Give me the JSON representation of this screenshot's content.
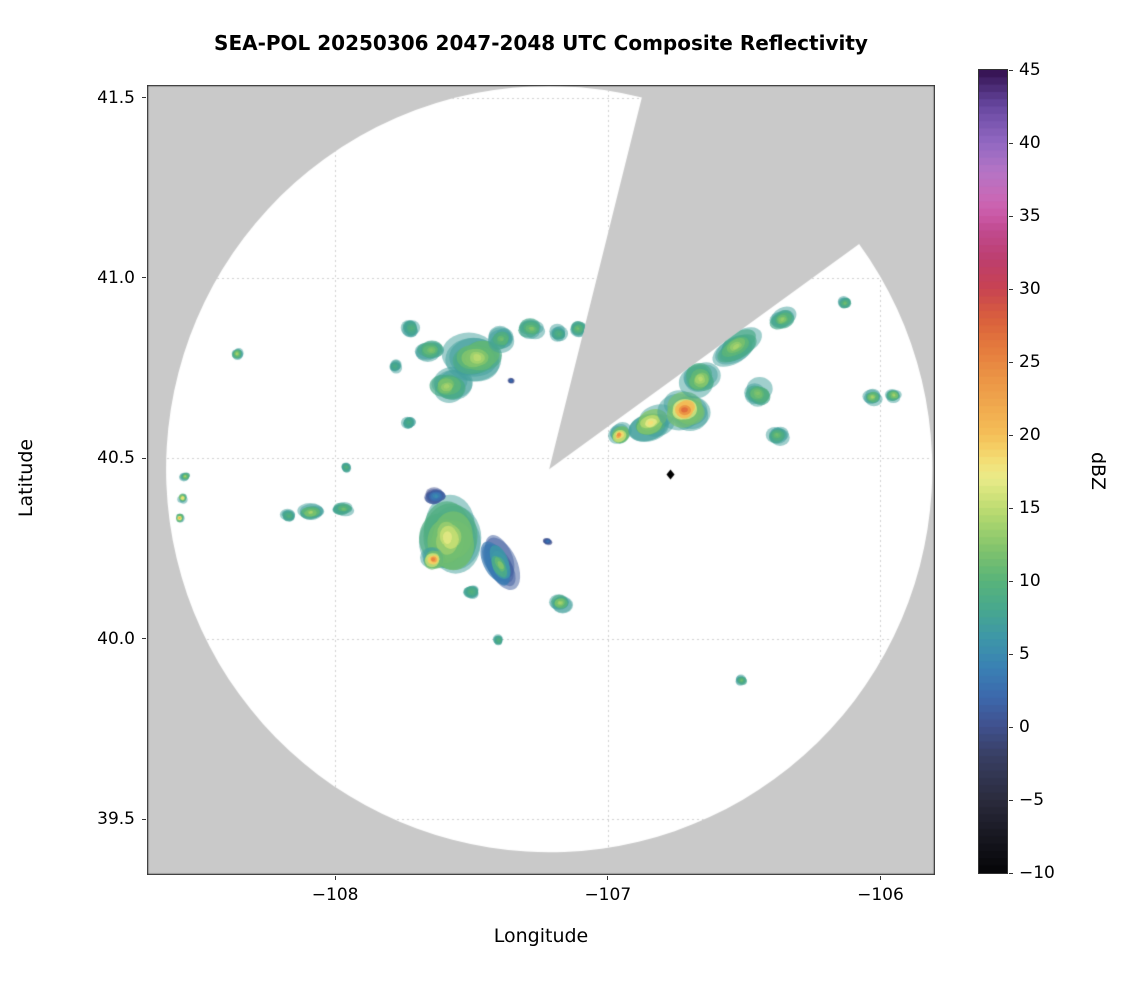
{
  "chart_data": {
    "type": "heatmap",
    "title": "SEA-POL 20250306 2047-2048 UTC Composite Reflectivity",
    "xlabel": "Longitude",
    "ylabel": "Latitude",
    "xlim": [
      -108.69,
      -105.8
    ],
    "ylim": [
      39.345,
      41.535
    ],
    "xticks": [
      {
        "v": -108,
        "label": "−108"
      },
      {
        "v": -107,
        "label": "−107"
      },
      {
        "v": -106,
        "label": "−106"
      }
    ],
    "yticks": [
      {
        "v": 39.5,
        "label": "39.5"
      },
      {
        "v": 40.0,
        "label": "40.0"
      },
      {
        "v": 40.5,
        "label": "40.5"
      },
      {
        "v": 41.0,
        "label": "41.0"
      },
      {
        "v": 41.5,
        "label": "41.5"
      }
    ],
    "grid_color": "#d2d2d2",
    "frame_color": "#333333",
    "background": "#ffffff",
    "colorbar": {
      "label": "dBZ",
      "min": -10,
      "max": 45,
      "ticks": [
        {
          "v": 45,
          "label": "45"
        },
        {
          "v": 40,
          "label": "40"
        },
        {
          "v": 35,
          "label": "35"
        },
        {
          "v": 30,
          "label": "30"
        },
        {
          "v": 25,
          "label": "25"
        },
        {
          "v": 20,
          "label": "20"
        },
        {
          "v": 15,
          "label": "15"
        },
        {
          "v": 10,
          "label": "10"
        },
        {
          "v": 5,
          "label": "5"
        },
        {
          "v": 0,
          "label": "0"
        },
        {
          "v": -5,
          "label": "−5"
        },
        {
          "v": -10,
          "label": "−10"
        }
      ],
      "stops": [
        {
          "v": -10,
          "c": "#050507"
        },
        {
          "v": -7,
          "c": "#1b1b26"
        },
        {
          "v": -5,
          "c": "#2b2b3d"
        },
        {
          "v": -2,
          "c": "#383f63"
        },
        {
          "v": 0,
          "c": "#40508d"
        },
        {
          "v": 2,
          "c": "#3c68ac"
        },
        {
          "v": 4,
          "c": "#3a80b4"
        },
        {
          "v": 6,
          "c": "#3d96a9"
        },
        {
          "v": 8,
          "c": "#47a78f"
        },
        {
          "v": 10,
          "c": "#58b37a"
        },
        {
          "v": 12,
          "c": "#7ec26d"
        },
        {
          "v": 14,
          "c": "#a8d46e"
        },
        {
          "v": 15,
          "c": "#bedc72"
        },
        {
          "v": 16,
          "c": "#d4e47c"
        },
        {
          "v": 17,
          "c": "#e9eb89"
        },
        {
          "v": 18,
          "c": "#f2e27a"
        },
        {
          "v": 19,
          "c": "#f5d167"
        },
        {
          "v": 20,
          "c": "#f4bf58"
        },
        {
          "v": 22,
          "c": "#f0a94e"
        },
        {
          "v": 24,
          "c": "#eb9345"
        },
        {
          "v": 26,
          "c": "#e47a3d"
        },
        {
          "v": 28,
          "c": "#d95f3d"
        },
        {
          "v": 30,
          "c": "#c84351"
        },
        {
          "v": 32,
          "c": "#bd3e6e"
        },
        {
          "v": 34,
          "c": "#c04b8f"
        },
        {
          "v": 35,
          "c": "#ca58a5"
        },
        {
          "v": 36,
          "c": "#cb66b4"
        },
        {
          "v": 38,
          "c": "#b575c5"
        },
        {
          "v": 40,
          "c": "#9268c2"
        },
        {
          "v": 42,
          "c": "#714fa8"
        },
        {
          "v": 43,
          "c": "#5d3d92"
        },
        {
          "v": 44,
          "c": "#47276f"
        },
        {
          "v": 45,
          "c": "#330f4d"
        }
      ]
    },
    "radar": {
      "center": [
        -107.215,
        40.47
      ],
      "radius_deg_lat": 1.062,
      "wedge_az": [
        14,
        54
      ],
      "outside_color": "#c9c9c9",
      "inside_color": "#ffffff"
    },
    "marker": {
      "lon": -106.77,
      "lat": 40.455,
      "shape": "diamond",
      "color": "#000000"
    },
    "echoes": [
      {
        "lon": -107.72,
        "lat": 40.86,
        "rx": 0.03,
        "ry": 0.022,
        "dbz": 10
      },
      {
        "lon": -107.65,
        "lat": 40.8,
        "rx": 0.05,
        "ry": 0.028,
        "dbz": 13
      },
      {
        "lon": -107.59,
        "lat": 40.7,
        "rx": 0.066,
        "ry": 0.04,
        "dbz": 15
      },
      {
        "lon": -107.48,
        "lat": 40.78,
        "rx": 0.095,
        "ry": 0.056,
        "dbz": 16
      },
      {
        "lon": -107.39,
        "lat": 40.83,
        "rx": 0.044,
        "ry": 0.03,
        "dbz": 12
      },
      {
        "lon": -107.28,
        "lat": 40.86,
        "rx": 0.044,
        "ry": 0.025,
        "dbz": 13
      },
      {
        "lon": -107.18,
        "lat": 40.845,
        "rx": 0.028,
        "ry": 0.02,
        "dbz": 10
      },
      {
        "lon": -107.11,
        "lat": 40.86,
        "rx": 0.03,
        "ry": 0.02,
        "dbz": 12
      },
      {
        "lon": -108.36,
        "lat": 40.79,
        "rx": 0.018,
        "ry": 0.014,
        "dbz": 15
      },
      {
        "lon": -107.78,
        "lat": 40.755,
        "rx": 0.022,
        "ry": 0.016,
        "dbz": 9
      },
      {
        "lon": -107.73,
        "lat": 40.6,
        "rx": 0.022,
        "ry": 0.016,
        "dbz": 9
      },
      {
        "lon": -107.96,
        "lat": 40.475,
        "rx": 0.018,
        "ry": 0.013,
        "dbz": 10
      },
      {
        "lon": -107.355,
        "lat": 40.715,
        "rx": 0.01,
        "ry": 0.007,
        "dbz": 3,
        "edge": 0
      },
      {
        "lon": -106.96,
        "lat": 40.565,
        "rx": 0.038,
        "ry": 0.024,
        "dbz": 27,
        "rot": -35
      },
      {
        "lon": -106.84,
        "lat": 40.6,
        "rx": 0.08,
        "ry": 0.04,
        "dbz": 20,
        "rot": -15
      },
      {
        "lon": -106.72,
        "lat": 40.635,
        "rx": 0.075,
        "ry": 0.048,
        "dbz": 30
      },
      {
        "lon": -106.66,
        "lat": 40.72,
        "rx": 0.058,
        "ry": 0.04,
        "dbz": 16
      },
      {
        "lon": -106.53,
        "lat": 40.81,
        "rx": 0.08,
        "ry": 0.034,
        "dbz": 15,
        "rot": -28
      },
      {
        "lon": -106.36,
        "lat": 40.885,
        "rx": 0.044,
        "ry": 0.024,
        "dbz": 14,
        "rot": -25
      },
      {
        "lon": -106.45,
        "lat": 40.68,
        "rx": 0.05,
        "ry": 0.034,
        "dbz": 13
      },
      {
        "lon": -106.38,
        "lat": 40.565,
        "rx": 0.036,
        "ry": 0.024,
        "dbz": 12
      },
      {
        "lon": -106.13,
        "lat": 40.93,
        "rx": 0.022,
        "ry": 0.015,
        "dbz": 12
      },
      {
        "lon": -106.03,
        "lat": 40.67,
        "rx": 0.03,
        "ry": 0.018,
        "dbz": 15
      },
      {
        "lon": -105.95,
        "lat": 40.675,
        "rx": 0.026,
        "ry": 0.016,
        "dbz": 15
      },
      {
        "lon": -107.585,
        "lat": 40.28,
        "rx": 0.115,
        "ry": 0.105,
        "dbz": 18
      },
      {
        "lon": -107.64,
        "lat": 40.22,
        "rx": 0.04,
        "ry": 0.03,
        "dbz": 28
      },
      {
        "lon": -107.395,
        "lat": 40.205,
        "rx": 0.05,
        "ry": 0.072,
        "dbz": 14,
        "edge": 1,
        "rot": -25
      },
      {
        "lon": -107.63,
        "lat": 40.395,
        "rx": 0.036,
        "ry": 0.02,
        "dbz": 6,
        "edge": 0
      },
      {
        "lon": -107.5,
        "lat": 40.13,
        "rx": 0.028,
        "ry": 0.018,
        "dbz": 10
      },
      {
        "lon": -107.22,
        "lat": 40.27,
        "rx": 0.014,
        "ry": 0.008,
        "dbz": 4,
        "edge": 0
      },
      {
        "lon": -108.09,
        "lat": 40.35,
        "rx": 0.044,
        "ry": 0.02,
        "dbz": 15
      },
      {
        "lon": -107.97,
        "lat": 40.36,
        "rx": 0.036,
        "ry": 0.017,
        "dbz": 12
      },
      {
        "lon": -108.17,
        "lat": 40.34,
        "rx": 0.026,
        "ry": 0.015,
        "dbz": 10
      },
      {
        "lon": -108.56,
        "lat": 40.39,
        "rx": 0.016,
        "ry": 0.012,
        "dbz": 20
      },
      {
        "lon": -108.57,
        "lat": 40.335,
        "rx": 0.014,
        "ry": 0.011,
        "dbz": 24
      },
      {
        "lon": -108.55,
        "lat": 40.45,
        "rx": 0.016,
        "ry": 0.01,
        "dbz": 15
      },
      {
        "lon": -107.175,
        "lat": 40.1,
        "rx": 0.036,
        "ry": 0.022,
        "dbz": 15
      },
      {
        "lon": -107.4,
        "lat": 39.995,
        "rx": 0.018,
        "ry": 0.013,
        "dbz": 10
      },
      {
        "lon": -106.51,
        "lat": 39.885,
        "rx": 0.018,
        "ry": 0.012,
        "dbz": 12
      }
    ]
  }
}
